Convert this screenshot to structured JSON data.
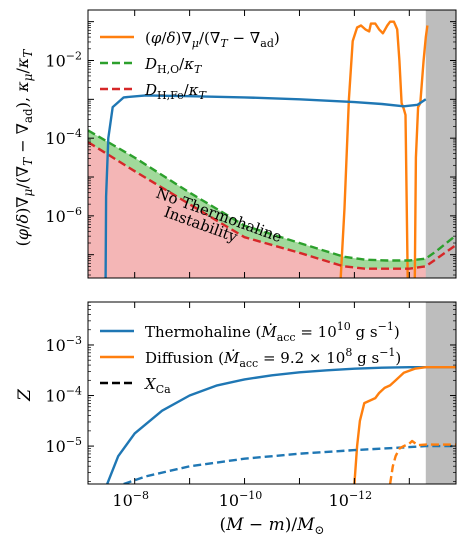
{
  "chart_data": [
    {
      "type": "line",
      "panel": "top",
      "ylabel": "(φ/δ)∇μ/(∇T − ∇ad), κμ/κT",
      "yscale": "log",
      "ylim_log10": [
        -7.6,
        -0.7
      ],
      "xscale": "log-reversed",
      "xlim_log10": [
        -7.15,
        -13.85
      ],
      "yticks": [
        {
          "exp": -2,
          "label": "10",
          "sup": "−2"
        },
        {
          "exp": -4,
          "label": "10",
          "sup": "−4"
        },
        {
          "exp": -6,
          "label": "10",
          "sup": "−6"
        }
      ],
      "legend_position": "top-left",
      "shaded_x_range_log10": [
        -13.3,
        -13.85
      ],
      "shaded_color": "#bdbdbd",
      "annotation": {
        "line1": "No Thermohaline",
        "line2": "Instability"
      },
      "series": [
        {
          "name": "(φ/δ)∇μ/(∇T − ∇ad)",
          "color": "#ff7f0e",
          "style": "solid",
          "points": [
            [
              -11.75,
              -7.6
            ],
            [
              -11.82,
              -5.8
            ],
            [
              -11.9,
              -3.0
            ],
            [
              -11.97,
              -1.5
            ],
            [
              -12.05,
              -1.15
            ],
            [
              -12.12,
              -1.1
            ],
            [
              -12.2,
              -1.2
            ],
            [
              -12.27,
              -1.25
            ],
            [
              -12.3,
              -1.05
            ],
            [
              -12.38,
              -1.05
            ],
            [
              -12.45,
              -1.2
            ],
            [
              -12.52,
              -1.3
            ],
            [
              -12.6,
              -1.1
            ],
            [
              -12.65,
              -1.0
            ],
            [
              -12.72,
              -1.0
            ],
            [
              -12.78,
              -1.2
            ],
            [
              -12.82,
              -2.0
            ],
            [
              -12.86,
              -3.1
            ],
            [
              -12.9,
              -3.25
            ],
            [
              -12.93,
              -3.4
            ],
            [
              -12.97,
              -7.6
            ]
          ]
        },
        {
          "name": "(φ/δ)∇μ/(∇T − ∇ad) (second branch)",
          "color": "#ff7f0e",
          "style": "solid",
          "points": [
            [
              -13.1,
              -7.6
            ],
            [
              -13.12,
              -4.5
            ],
            [
              -13.16,
              -3.2
            ],
            [
              -13.2,
              -3.1
            ],
            [
              -13.26,
              -2.0
            ],
            [
              -13.3,
              -1.4
            ],
            [
              -13.33,
              -1.1
            ]
          ]
        },
        {
          "name": "D_H,O/κT",
          "color": "#2ca02c",
          "style": "dashed",
          "points": [
            [
              -7.15,
              -3.8
            ],
            [
              -8.0,
              -4.5
            ],
            [
              -9.0,
              -5.4
            ],
            [
              -10.0,
              -6.25
            ],
            [
              -11.0,
              -6.7
            ],
            [
              -11.8,
              -7.05
            ],
            [
              -12.2,
              -7.13
            ],
            [
              -12.6,
              -7.15
            ],
            [
              -13.0,
              -7.15
            ],
            [
              -13.3,
              -7.1
            ],
            [
              -13.5,
              -6.9
            ],
            [
              -13.85,
              -6.5
            ]
          ]
        },
        {
          "name": "D_H,Fe/κT",
          "color": "#d62728",
          "style": "dashed",
          "points": [
            [
              -7.15,
              -4.1
            ],
            [
              -8.0,
              -4.85
            ],
            [
              -9.0,
              -5.7
            ],
            [
              -10.0,
              -6.55
            ],
            [
              -11.0,
              -6.95
            ],
            [
              -11.8,
              -7.3
            ],
            [
              -12.2,
              -7.36
            ],
            [
              -12.6,
              -7.36
            ],
            [
              -13.0,
              -7.36
            ],
            [
              -13.3,
              -7.3
            ],
            [
              -13.5,
              -7.1
            ],
            [
              -13.85,
              -6.75
            ]
          ]
        },
        {
          "name": "Thermohaline criterion",
          "color": "#1f77b4",
          "style": "solid",
          "points": [
            [
              -7.47,
              -7.6
            ],
            [
              -7.48,
              -5.5
            ],
            [
              -7.52,
              -4.0
            ],
            [
              -7.6,
              -3.2
            ],
            [
              -7.8,
              -2.95
            ],
            [
              -8.2,
              -2.9
            ],
            [
              -9.0,
              -2.92
            ],
            [
              -10.0,
              -2.95
            ],
            [
              -11.0,
              -3.0
            ],
            [
              -12.0,
              -3.07
            ],
            [
              -12.5,
              -3.12
            ],
            [
              -12.9,
              -3.18
            ],
            [
              -13.15,
              -3.14
            ],
            [
              -13.3,
              -3.0
            ]
          ]
        }
      ]
    },
    {
      "type": "line",
      "panel": "bottom",
      "ylabel": "Z",
      "xlabel": "(M − m)/M⊙",
      "yscale": "log",
      "ylim_log10": [
        -5.75,
        -2.15
      ],
      "xscale": "log-reversed",
      "xlim_log10": [
        -7.15,
        -13.85
      ],
      "yticks": [
        {
          "exp": -3,
          "label": "10",
          "sup": "−3"
        },
        {
          "exp": -4,
          "label": "10",
          "sup": "−4"
        },
        {
          "exp": -5,
          "label": "10",
          "sup": "−5"
        }
      ],
      "xticks": [
        {
          "exp": -8,
          "label": "10",
          "sup": "−8"
        },
        {
          "exp": -10,
          "label": "10",
          "sup": "−10"
        },
        {
          "exp": -12,
          "label": "10",
          "sup": "−12"
        }
      ],
      "legend_position": "top-left",
      "shaded_x_range_log10": [
        -13.3,
        -13.85
      ],
      "shaded_color": "#bdbdbd",
      "series": [
        {
          "name": "Thermohaline (Ṁacc = 10¹⁰ g s⁻¹)",
          "color": "#1f77b4",
          "style": "solid",
          "points": [
            [
              -7.5,
              -5.75
            ],
            [
              -7.7,
              -5.2
            ],
            [
              -8.0,
              -4.75
            ],
            [
              -8.5,
              -4.3
            ],
            [
              -9.0,
              -4.0
            ],
            [
              -9.5,
              -3.8
            ],
            [
              -10.0,
              -3.68
            ],
            [
              -10.5,
              -3.6
            ],
            [
              -11.0,
              -3.54
            ],
            [
              -11.5,
              -3.5
            ],
            [
              -12.0,
              -3.47
            ],
            [
              -12.5,
              -3.45
            ],
            [
              -13.0,
              -3.44
            ],
            [
              -13.3,
              -3.44
            ],
            [
              -13.85,
              -3.44
            ]
          ]
        },
        {
          "name": "Diffusion (Ṁacc = 9.2 × 10⁸ g s⁻¹)",
          "color": "#ff7f0e",
          "style": "solid",
          "points": [
            [
              -12.0,
              -5.75
            ],
            [
              -12.05,
              -5.0
            ],
            [
              -12.1,
              -4.5
            ],
            [
              -12.18,
              -4.15
            ],
            [
              -12.28,
              -4.1
            ],
            [
              -12.38,
              -4.05
            ],
            [
              -12.45,
              -3.95
            ],
            [
              -12.55,
              -3.85
            ],
            [
              -12.65,
              -3.8
            ],
            [
              -12.75,
              -3.7
            ],
            [
              -12.9,
              -3.55
            ],
            [
              -13.1,
              -3.47
            ],
            [
              -13.3,
              -3.44
            ],
            [
              -13.85,
              -3.44
            ]
          ]
        },
        {
          "name": "X_Ca (thermohaline)",
          "color": "#1f77b4",
          "style": "dashed",
          "points": [
            [
              -7.8,
              -5.75
            ],
            [
              -8.2,
              -5.6
            ],
            [
              -9.0,
              -5.4
            ],
            [
              -10.0,
              -5.25
            ],
            [
              -11.0,
              -5.15
            ],
            [
              -12.0,
              -5.08
            ],
            [
              -12.5,
              -5.05
            ],
            [
              -13.0,
              -5.02
            ],
            [
              -13.3,
              -5.0
            ],
            [
              -13.85,
              -5.0
            ]
          ]
        },
        {
          "name": "X_Ca (diffusion)",
          "color": "#ff7f0e",
          "style": "dashed",
          "points": [
            [
              -12.65,
              -5.75
            ],
            [
              -12.7,
              -5.4
            ],
            [
              -12.75,
              -5.2
            ],
            [
              -12.82,
              -5.05
            ],
            [
              -12.9,
              -5.0
            ],
            [
              -13.0,
              -4.95
            ],
            [
              -13.05,
              -4.9
            ],
            [
              -13.15,
              -4.98
            ],
            [
              -13.3,
              -4.97
            ],
            [
              -13.85,
              -4.97
            ]
          ]
        }
      ]
    }
  ],
  "legend_top": [
    {
      "label": "(φ/δ)∇μ/(∇T − ∇ad)",
      "color": "#ff7f0e",
      "style": "solid"
    },
    {
      "label": "DH,O/κT",
      "color": "#2ca02c",
      "style": "dashed"
    },
    {
      "label": "DH,Fe/κT",
      "color": "#d62728",
      "style": "dashed"
    }
  ],
  "legend_bottom": [
    {
      "label": "Thermohaline (Ṁacc = 10¹⁰ g s⁻¹)",
      "color": "#1f77b4",
      "style": "solid"
    },
    {
      "label": "Diffusion (Ṁacc = 9.2 × 10⁸ g s⁻¹)",
      "color": "#ff7f0e",
      "style": "solid"
    },
    {
      "label": "XCa",
      "color": "#000000",
      "style": "dashed"
    }
  ],
  "fill_colors": {
    "green": "#a1d99b",
    "red": "#f4b6b6"
  }
}
